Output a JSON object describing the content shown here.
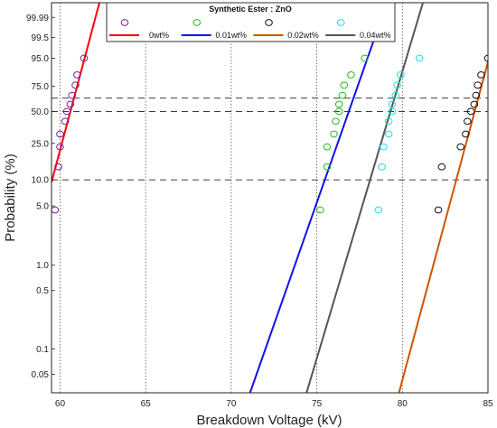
{
  "chart_data": {
    "type": "scatter",
    "title": "",
    "xlabel": "Breakdown Voltage (kV)",
    "ylabel": "Probability (%)",
    "xlim": [
      59.5,
      85
    ],
    "ylim": [
      0.03,
      99.9999
    ],
    "y_scale": "weibull-probability",
    "grid": "vertical dotted",
    "x_ticks": [
      "60",
      "65",
      "70",
      "75",
      "80",
      "85"
    ],
    "y_ticks": [
      {
        "value": 0.05,
        "label": "0.05"
      },
      {
        "value": 0.1,
        "label": "0.1"
      },
      {
        "value": 0.5,
        "label": "0.5"
      },
      {
        "value": 1,
        "label": "1.0"
      },
      {
        "value": 5,
        "label": "5.0"
      },
      {
        "value": 10,
        "label": "10.0"
      },
      {
        "value": 25,
        "label": "25.0"
      },
      {
        "value": 50,
        "label": "50.0"
      },
      {
        "value": 75,
        "label": "75.0"
      },
      {
        "value": 95,
        "label": "95.0"
      },
      {
        "value": 99.5,
        "label": "99.5"
      },
      {
        "value": 99.99,
        "label": "99.99"
      }
    ],
    "reference_lines": [
      10,
      50,
      63.2
    ],
    "legend": {
      "title": "Synthetic Ester : ZnO",
      "placement": "top-center"
    },
    "series": [
      {
        "name": "0wt%",
        "color": "#7b1fa2",
        "line_color": "#ff0000",
        "points": [
          [
            59.7,
            4.5
          ],
          [
            59.9,
            14
          ],
          [
            60.0,
            23
          ],
          [
            60.0,
            31
          ],
          [
            60.3,
            41
          ],
          [
            60.4,
            50
          ],
          [
            60.6,
            57
          ],
          [
            60.7,
            66
          ],
          [
            60.9,
            76
          ],
          [
            61.0,
            85
          ],
          [
            61.4,
            95
          ]
        ],
        "fit": [
          [
            59.5,
            9.4
          ],
          [
            62.3,
            99.9999
          ]
        ]
      },
      {
        "name": "0.01wt%",
        "color": "#22bb22",
        "line_color": "#1010ee",
        "points": [
          [
            75.2,
            4.5
          ],
          [
            75.6,
            14
          ],
          [
            75.6,
            23
          ],
          [
            76.0,
            31
          ],
          [
            76.1,
            41
          ],
          [
            76.3,
            50
          ],
          [
            76.3,
            57
          ],
          [
            76.5,
            66
          ],
          [
            76.6,
            76
          ],
          [
            77.0,
            85
          ],
          [
            77.8,
            95
          ]
        ],
        "fit": [
          [
            71.1,
            0.03
          ],
          [
            79.1,
            99.9999
          ]
        ]
      },
      {
        "name": "0.02wt%",
        "color": "#111111",
        "line_color": "#cc5500",
        "points": [
          [
            82.1,
            4.5
          ],
          [
            82.3,
            14
          ],
          [
            83.4,
            23
          ],
          [
            83.7,
            31
          ],
          [
            83.8,
            41
          ],
          [
            84.0,
            50
          ],
          [
            84.2,
            57
          ],
          [
            84.3,
            66
          ],
          [
            84.4,
            76
          ],
          [
            84.6,
            85
          ],
          [
            85.0,
            95
          ]
        ],
        "fit": [
          [
            79.8,
            0.03
          ],
          [
            85.1,
            96
          ]
        ]
      },
      {
        "name": "0.04wt%",
        "color": "#22dddd",
        "line_color": "#555555",
        "points": [
          [
            78.6,
            4.5
          ],
          [
            78.8,
            14
          ],
          [
            78.9,
            23
          ],
          [
            79.2,
            31
          ],
          [
            79.2,
            41
          ],
          [
            79.4,
            50
          ],
          [
            79.4,
            57
          ],
          [
            79.6,
            66
          ],
          [
            79.7,
            76
          ],
          [
            79.9,
            85
          ],
          [
            81.0,
            95
          ]
        ],
        "fit": [
          [
            74.4,
            0.03
          ],
          [
            81.2,
            99.9999
          ]
        ]
      }
    ]
  }
}
